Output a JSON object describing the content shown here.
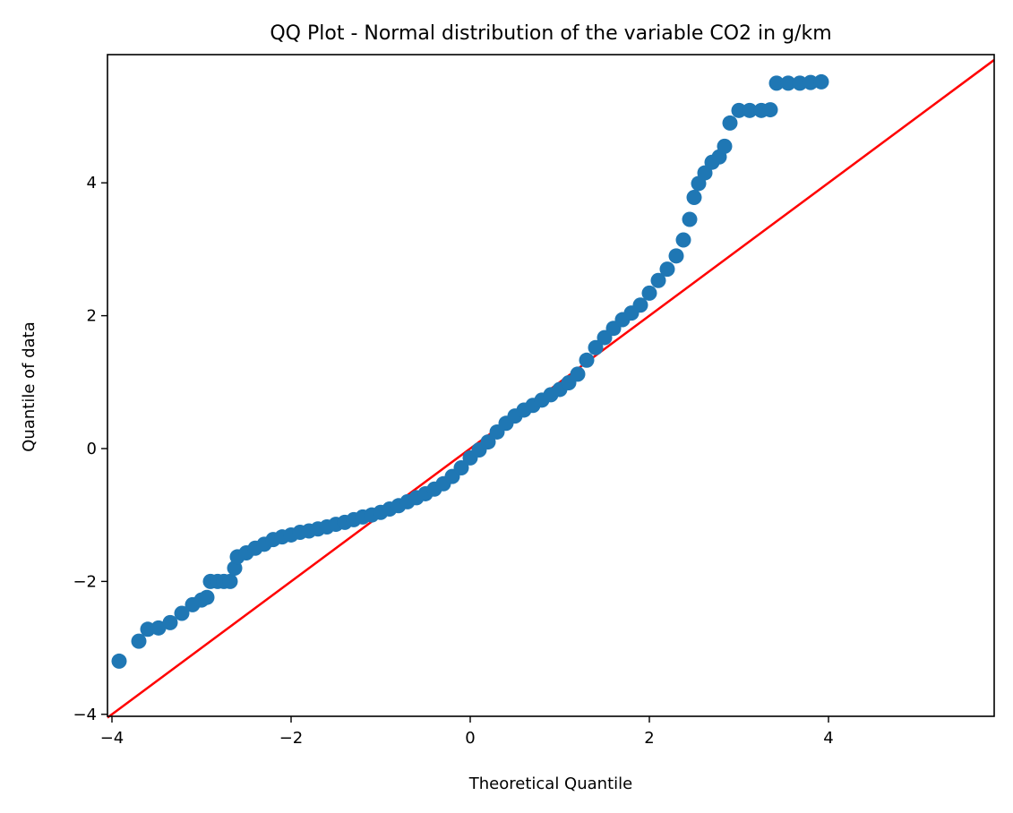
{
  "chart_data": {
    "type": "scatter",
    "title": "QQ Plot - Normal distribution of the variable CO2 in g/km",
    "xlabel": "Theoretical Quantile",
    "ylabel": "Quantile of data",
    "xlim": [
      -4.05,
      5.85
    ],
    "ylim": [
      -4.03,
      5.93
    ],
    "x_ticks": [
      {
        "value": -4,
        "label": "−4"
      },
      {
        "value": -2,
        "label": "−2"
      },
      {
        "value": 0,
        "label": "0"
      },
      {
        "value": 2,
        "label": "2"
      },
      {
        "value": 4,
        "label": "4"
      }
    ],
    "y_ticks": [
      {
        "value": -4,
        "label": "−4"
      },
      {
        "value": -2,
        "label": "−2"
      },
      {
        "value": 0,
        "label": "0"
      },
      {
        "value": 2,
        "label": "2"
      },
      {
        "value": 4,
        "label": "4"
      }
    ],
    "grid": false,
    "legend": "none",
    "series": [
      {
        "type": "scatter",
        "color": "#1f77b4",
        "points": [
          [
            -3.92,
            -3.2
          ],
          [
            -3.7,
            -2.9
          ],
          [
            -3.6,
            -2.72
          ],
          [
            -3.48,
            -2.7
          ],
          [
            -3.35,
            -2.62
          ],
          [
            -3.22,
            -2.48
          ],
          [
            -3.1,
            -2.35
          ],
          [
            -3.0,
            -2.28
          ],
          [
            -2.94,
            -2.24
          ],
          [
            -2.9,
            -2.0
          ],
          [
            -2.82,
            -2.0
          ],
          [
            -2.75,
            -2.0
          ],
          [
            -2.68,
            -2.0
          ],
          [
            -2.63,
            -1.8
          ],
          [
            -2.6,
            -1.63
          ],
          [
            -2.5,
            -1.57
          ],
          [
            -2.4,
            -1.5
          ],
          [
            -2.3,
            -1.44
          ],
          [
            -2.2,
            -1.37
          ],
          [
            -2.1,
            -1.33
          ],
          [
            -2.0,
            -1.3
          ],
          [
            -1.9,
            -1.26
          ],
          [
            -1.8,
            -1.24
          ],
          [
            -1.7,
            -1.21
          ],
          [
            -1.6,
            -1.18
          ],
          [
            -1.5,
            -1.14
          ],
          [
            -1.4,
            -1.11
          ],
          [
            -1.3,
            -1.07
          ],
          [
            -1.2,
            -1.03
          ],
          [
            -1.1,
            -1.0
          ],
          [
            -1.0,
            -0.96
          ],
          [
            -0.9,
            -0.91
          ],
          [
            -0.8,
            -0.86
          ],
          [
            -0.7,
            -0.8
          ],
          [
            -0.6,
            -0.74
          ],
          [
            -0.5,
            -0.68
          ],
          [
            -0.4,
            -0.61
          ],
          [
            -0.3,
            -0.53
          ],
          [
            -0.2,
            -0.42
          ],
          [
            -0.1,
            -0.29
          ],
          [
            0.0,
            -0.14
          ],
          [
            0.1,
            -0.02
          ],
          [
            0.2,
            0.1
          ],
          [
            0.3,
            0.25
          ],
          [
            0.4,
            0.38
          ],
          [
            0.5,
            0.49
          ],
          [
            0.6,
            0.58
          ],
          [
            0.7,
            0.65
          ],
          [
            0.8,
            0.73
          ],
          [
            0.9,
            0.81
          ],
          [
            1.0,
            0.89
          ],
          [
            1.1,
            0.99
          ],
          [
            1.2,
            1.12
          ],
          [
            1.3,
            1.33
          ],
          [
            1.4,
            1.52
          ],
          [
            1.5,
            1.67
          ],
          [
            1.6,
            1.81
          ],
          [
            1.7,
            1.94
          ],
          [
            1.8,
            2.04
          ],
          [
            1.9,
            2.16
          ],
          [
            2.0,
            2.34
          ],
          [
            2.1,
            2.53
          ],
          [
            2.2,
            2.7
          ],
          [
            2.3,
            2.9
          ],
          [
            2.38,
            3.14
          ],
          [
            2.45,
            3.45
          ],
          [
            2.5,
            3.78
          ],
          [
            2.55,
            3.99
          ],
          [
            2.62,
            4.15
          ],
          [
            2.7,
            4.31
          ],
          [
            2.78,
            4.39
          ],
          [
            2.84,
            4.55
          ],
          [
            2.9,
            4.9
          ],
          [
            3.0,
            5.09
          ],
          [
            3.12,
            5.09
          ],
          [
            3.25,
            5.09
          ],
          [
            3.35,
            5.1
          ],
          [
            3.42,
            5.5
          ],
          [
            3.55,
            5.5
          ],
          [
            3.68,
            5.5
          ],
          [
            3.8,
            5.51
          ],
          [
            3.92,
            5.52
          ]
        ]
      },
      {
        "type": "line",
        "color": "#ff0000",
        "points": [
          [
            -4.05,
            -4.05
          ],
          [
            5.85,
            5.85
          ]
        ]
      }
    ]
  }
}
